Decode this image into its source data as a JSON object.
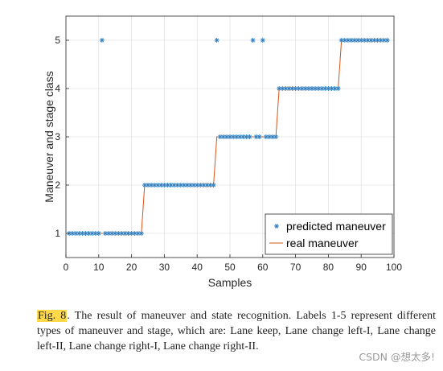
{
  "chart_data": {
    "type": "scatter",
    "xlabel": "Samples",
    "ylabel": "Maneuver and stage class",
    "xlim": [
      0,
      100
    ],
    "ylim": [
      0.5,
      5.5
    ],
    "xticks": [
      0,
      10,
      20,
      30,
      40,
      50,
      60,
      70,
      80,
      90,
      100
    ],
    "yticks": [
      1,
      2,
      3,
      4,
      5
    ],
    "grid": true,
    "legend": "bottom-right",
    "series": [
      {
        "name": "predicted maneuver",
        "marker": "*",
        "color": "#2e7dbf",
        "x": [
          1,
          2,
          3,
          4,
          5,
          6,
          7,
          8,
          9,
          10,
          11,
          12,
          13,
          14,
          15,
          16,
          17,
          18,
          19,
          20,
          21,
          22,
          23,
          24,
          25,
          26,
          27,
          28,
          29,
          30,
          31,
          32,
          33,
          34,
          35,
          36,
          37,
          38,
          39,
          40,
          41,
          42,
          43,
          44,
          45,
          46,
          47,
          48,
          49,
          50,
          51,
          52,
          53,
          54,
          55,
          56,
          57,
          58,
          59,
          60,
          61,
          62,
          63,
          64,
          65,
          66,
          67,
          68,
          69,
          70,
          71,
          72,
          73,
          74,
          75,
          76,
          77,
          78,
          79,
          80,
          81,
          82,
          83,
          84,
          85,
          86,
          87,
          88,
          89,
          90,
          91,
          92,
          93,
          94,
          95,
          96,
          97,
          98
        ],
        "y": [
          1,
          1,
          1,
          1,
          1,
          1,
          1,
          1,
          1,
          1,
          5,
          1,
          1,
          1,
          1,
          1,
          1,
          1,
          1,
          1,
          1,
          1,
          1,
          2,
          2,
          2,
          2,
          2,
          2,
          2,
          2,
          2,
          2,
          2,
          2,
          2,
          2,
          2,
          2,
          2,
          2,
          2,
          2,
          2,
          2,
          5,
          3,
          3,
          3,
          3,
          3,
          3,
          3,
          3,
          3,
          3,
          5,
          3,
          3,
          5,
          3,
          3,
          3,
          3,
          4,
          4,
          4,
          4,
          4,
          4,
          4,
          4,
          4,
          4,
          4,
          4,
          4,
          4,
          4,
          4,
          4,
          4,
          4,
          5,
          5,
          5,
          5,
          5,
          5,
          5,
          5,
          5,
          5,
          5,
          5,
          5,
          5,
          5
        ]
      },
      {
        "name": "real maneuver",
        "line": "solid",
        "color": "#d95319",
        "x": [
          1,
          23,
          24,
          45,
          46,
          64,
          65,
          83,
          84,
          98
        ],
        "y": [
          1,
          1,
          2,
          2,
          3,
          3,
          4,
          4,
          5,
          5
        ]
      }
    ]
  },
  "caption": {
    "fig_label": "Fig. 8",
    "text": ".   The result of maneuver and state recognition. Labels 1-5 represent different types of maneuver and stage, which are: Lane keep, Lane change left-I, Lane change left-II, Lane change right-I, Lane change right-II."
  },
  "watermark": "CSDN @想太多!"
}
